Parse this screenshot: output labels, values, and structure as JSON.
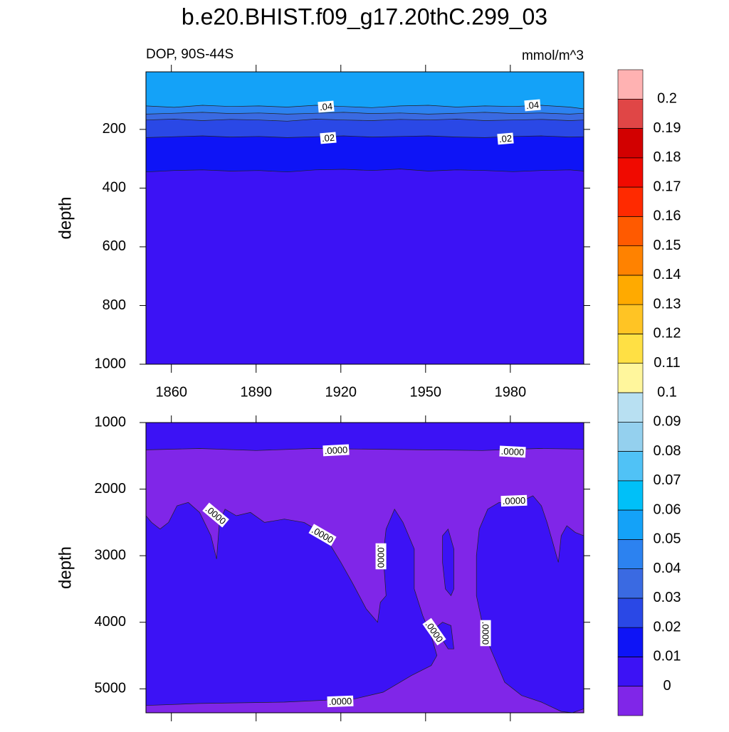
{
  "title": "b.e20.BHIST.f09_g17.20thC.299_03",
  "chart_data": [
    {
      "type": "contour",
      "subtitle_left": "DOP, 90S-44S",
      "subtitle_right": "mmol/m^3",
      "ylabel": "depth",
      "xlim": [
        1851,
        2006
      ],
      "xticks": [
        1860,
        1890,
        1920,
        1950,
        1980
      ],
      "ylim": [
        1000,
        4
      ],
      "yticks": [
        200,
        400,
        600,
        800,
        1000
      ],
      "contours": [
        {
          "level": 0.01,
          "x": [
            1851,
            1861,
            1871,
            1881,
            1891,
            1901,
            1911,
            1921,
            1931,
            1941,
            1951,
            1961,
            1971,
            1981,
            1991,
            2001,
            2006
          ],
          "values": [
            345,
            340,
            338,
            342,
            340,
            345,
            338,
            336,
            340,
            335,
            342,
            338,
            340,
            344,
            340,
            338,
            342
          ]
        },
        {
          "level": 0.02,
          "x": [
            1851,
            1861,
            1871,
            1881,
            1891,
            1901,
            1911,
            1921,
            1931,
            1941,
            1951,
            1961,
            1971,
            1981,
            1991,
            2001,
            2006
          ],
          "values": [
            228,
            225,
            222,
            226,
            224,
            228,
            225,
            222,
            226,
            224,
            222,
            226,
            228,
            224,
            222,
            226,
            225
          ]
        },
        {
          "level": 0.03,
          "x": [
            1851,
            1861,
            1871,
            1881,
            1891,
            1901,
            1911,
            1921,
            1931,
            1941,
            1951,
            1961,
            1971,
            1981,
            1991,
            2001,
            2006
          ],
          "values": [
            168,
            165,
            170,
            166,
            168,
            172,
            165,
            168,
            170,
            166,
            168,
            165,
            170,
            168,
            166,
            170,
            168
          ]
        },
        {
          "level": 0.04,
          "x": [
            1851,
            1861,
            1871,
            1881,
            1891,
            1901,
            1911,
            1921,
            1931,
            1941,
            1951,
            1961,
            1971,
            1981,
            1991,
            2001,
            2006
          ],
          "values": [
            148,
            145,
            142,
            146,
            144,
            148,
            145,
            142,
            146,
            144,
            148,
            145,
            142,
            146,
            144,
            148,
            145
          ]
        },
        {
          "level": 0.05,
          "x": [
            1851,
            1861,
            1871,
            1881,
            1891,
            1901,
            1911,
            1921,
            1931,
            1941,
            1951,
            1961,
            1971,
            1981,
            1991,
            2001,
            2006
          ],
          "values": [
            120,
            125,
            118,
            122,
            120,
            124,
            118,
            122,
            126,
            120,
            118,
            124,
            120,
            122,
            118,
            124,
            130
          ]
        }
      ],
      "contour_labels": [
        ".04",
        ".04",
        ".02",
        ".02"
      ]
    },
    {
      "type": "contour",
      "ylabel": "depth",
      "xlim": [
        1851,
        2006
      ],
      "xticks": [
        1860,
        1890,
        1920,
        1950,
        1980
      ],
      "ylim": [
        5360,
        1000
      ],
      "yticks": [
        1000,
        2000,
        3000,
        4000,
        5000
      ],
      "contours": [
        {
          "level": 0,
          "closed": true,
          "x": [
            1851,
            2006,
            2006,
            1990,
            1970,
            1950,
            1930,
            1910,
            1890,
            1870,
            1851
          ],
          "values": [
            1000,
            1000,
            1400,
            1390,
            1420,
            1410,
            1400,
            1390,
            1420,
            1390,
            1410
          ]
        },
        {
          "level": 0,
          "closed": true,
          "x": [
            1851,
            1853,
            1856,
            1859,
            1862,
            1866,
            1870,
            1874,
            1876,
            1877,
            1879,
            1883,
            1888,
            1893,
            1900,
            1907,
            1911,
            1915,
            1920,
            1924,
            1929,
            1933,
            1934,
            1936,
            1935,
            1936,
            1939,
            1942,
            1946,
            1946,
            1949,
            1952,
            1954,
            1952,
            1945,
            1935,
            1925,
            1900,
            1870,
            1851
          ],
          "values": [
            2400,
            2500,
            2600,
            2500,
            2250,
            2200,
            2350,
            2700,
            3050,
            2500,
            2300,
            2400,
            2350,
            2500,
            2450,
            2500,
            2600,
            2750,
            3100,
            3400,
            3800,
            4000,
            3700,
            3600,
            3000,
            2600,
            2300,
            2500,
            2900,
            3500,
            3900,
            4200,
            4500,
            4650,
            4800,
            5050,
            5150,
            5200,
            5220,
            5250
          ]
        },
        {
          "level": 0,
          "closed": true,
          "x": [
            1956,
            1958,
            1960,
            1960,
            1959,
            1957,
            1956
          ],
          "values": [
            2700,
            2600,
            2900,
            3500,
            3600,
            3500,
            3100
          ]
        },
        {
          "level": 0,
          "closed": true,
          "x": [
            1953,
            1956,
            1959,
            1960,
            1958,
            1955
          ],
          "values": [
            4100,
            4000,
            4050,
            4400,
            4400,
            4200
          ]
        },
        {
          "level": 0,
          "closed": true,
          "x": [
            1968,
            1969,
            1972,
            1976,
            1983,
            1988,
            1991,
            1993,
            1995,
            1997,
            1998,
            2000,
            2003,
            2006,
            2006,
            2002,
            1998,
            1991,
            1984,
            1978,
            1975,
            1971,
            1968
          ],
          "values": [
            3000,
            2600,
            2300,
            2200,
            2200,
            2100,
            2250,
            2500,
            2800,
            3100,
            2700,
            2550,
            2650,
            2700,
            5300,
            5360,
            5340,
            5200,
            5100,
            4900,
            4600,
            4200,
            3600
          ]
        }
      ],
      "contour_labels": [
        ".0000",
        ".0000",
        ".0000",
        ".0000",
        ".0000",
        ".0000",
        ".0000",
        ".0000",
        ".0000"
      ]
    }
  ],
  "colorbar": {
    "levels": [
      0,
      0.01,
      0.02,
      0.03,
      0.04,
      0.05,
      0.06,
      0.07,
      0.08,
      0.09,
      0.1,
      0.11,
      0.12,
      0.13,
      0.14,
      0.15,
      0.16,
      0.17,
      0.18,
      0.19,
      0.2
    ],
    "colors": [
      "#8026e8",
      "#3c12f5",
      "#0e14f6",
      "#2a48e6",
      "#3a6ae2",
      "#2c82f0",
      "#14a2f8",
      "#00c0f8",
      "#50c2f6",
      "#94d0ee",
      "#b8e0f2",
      "#fff69c",
      "#ffe044",
      "#ffc424",
      "#ffaa00",
      "#ff8200",
      "#ff5a00",
      "#ff2a00",
      "#f00a00",
      "#d20000",
      "#e04646",
      "#ffb2b2"
    ]
  }
}
